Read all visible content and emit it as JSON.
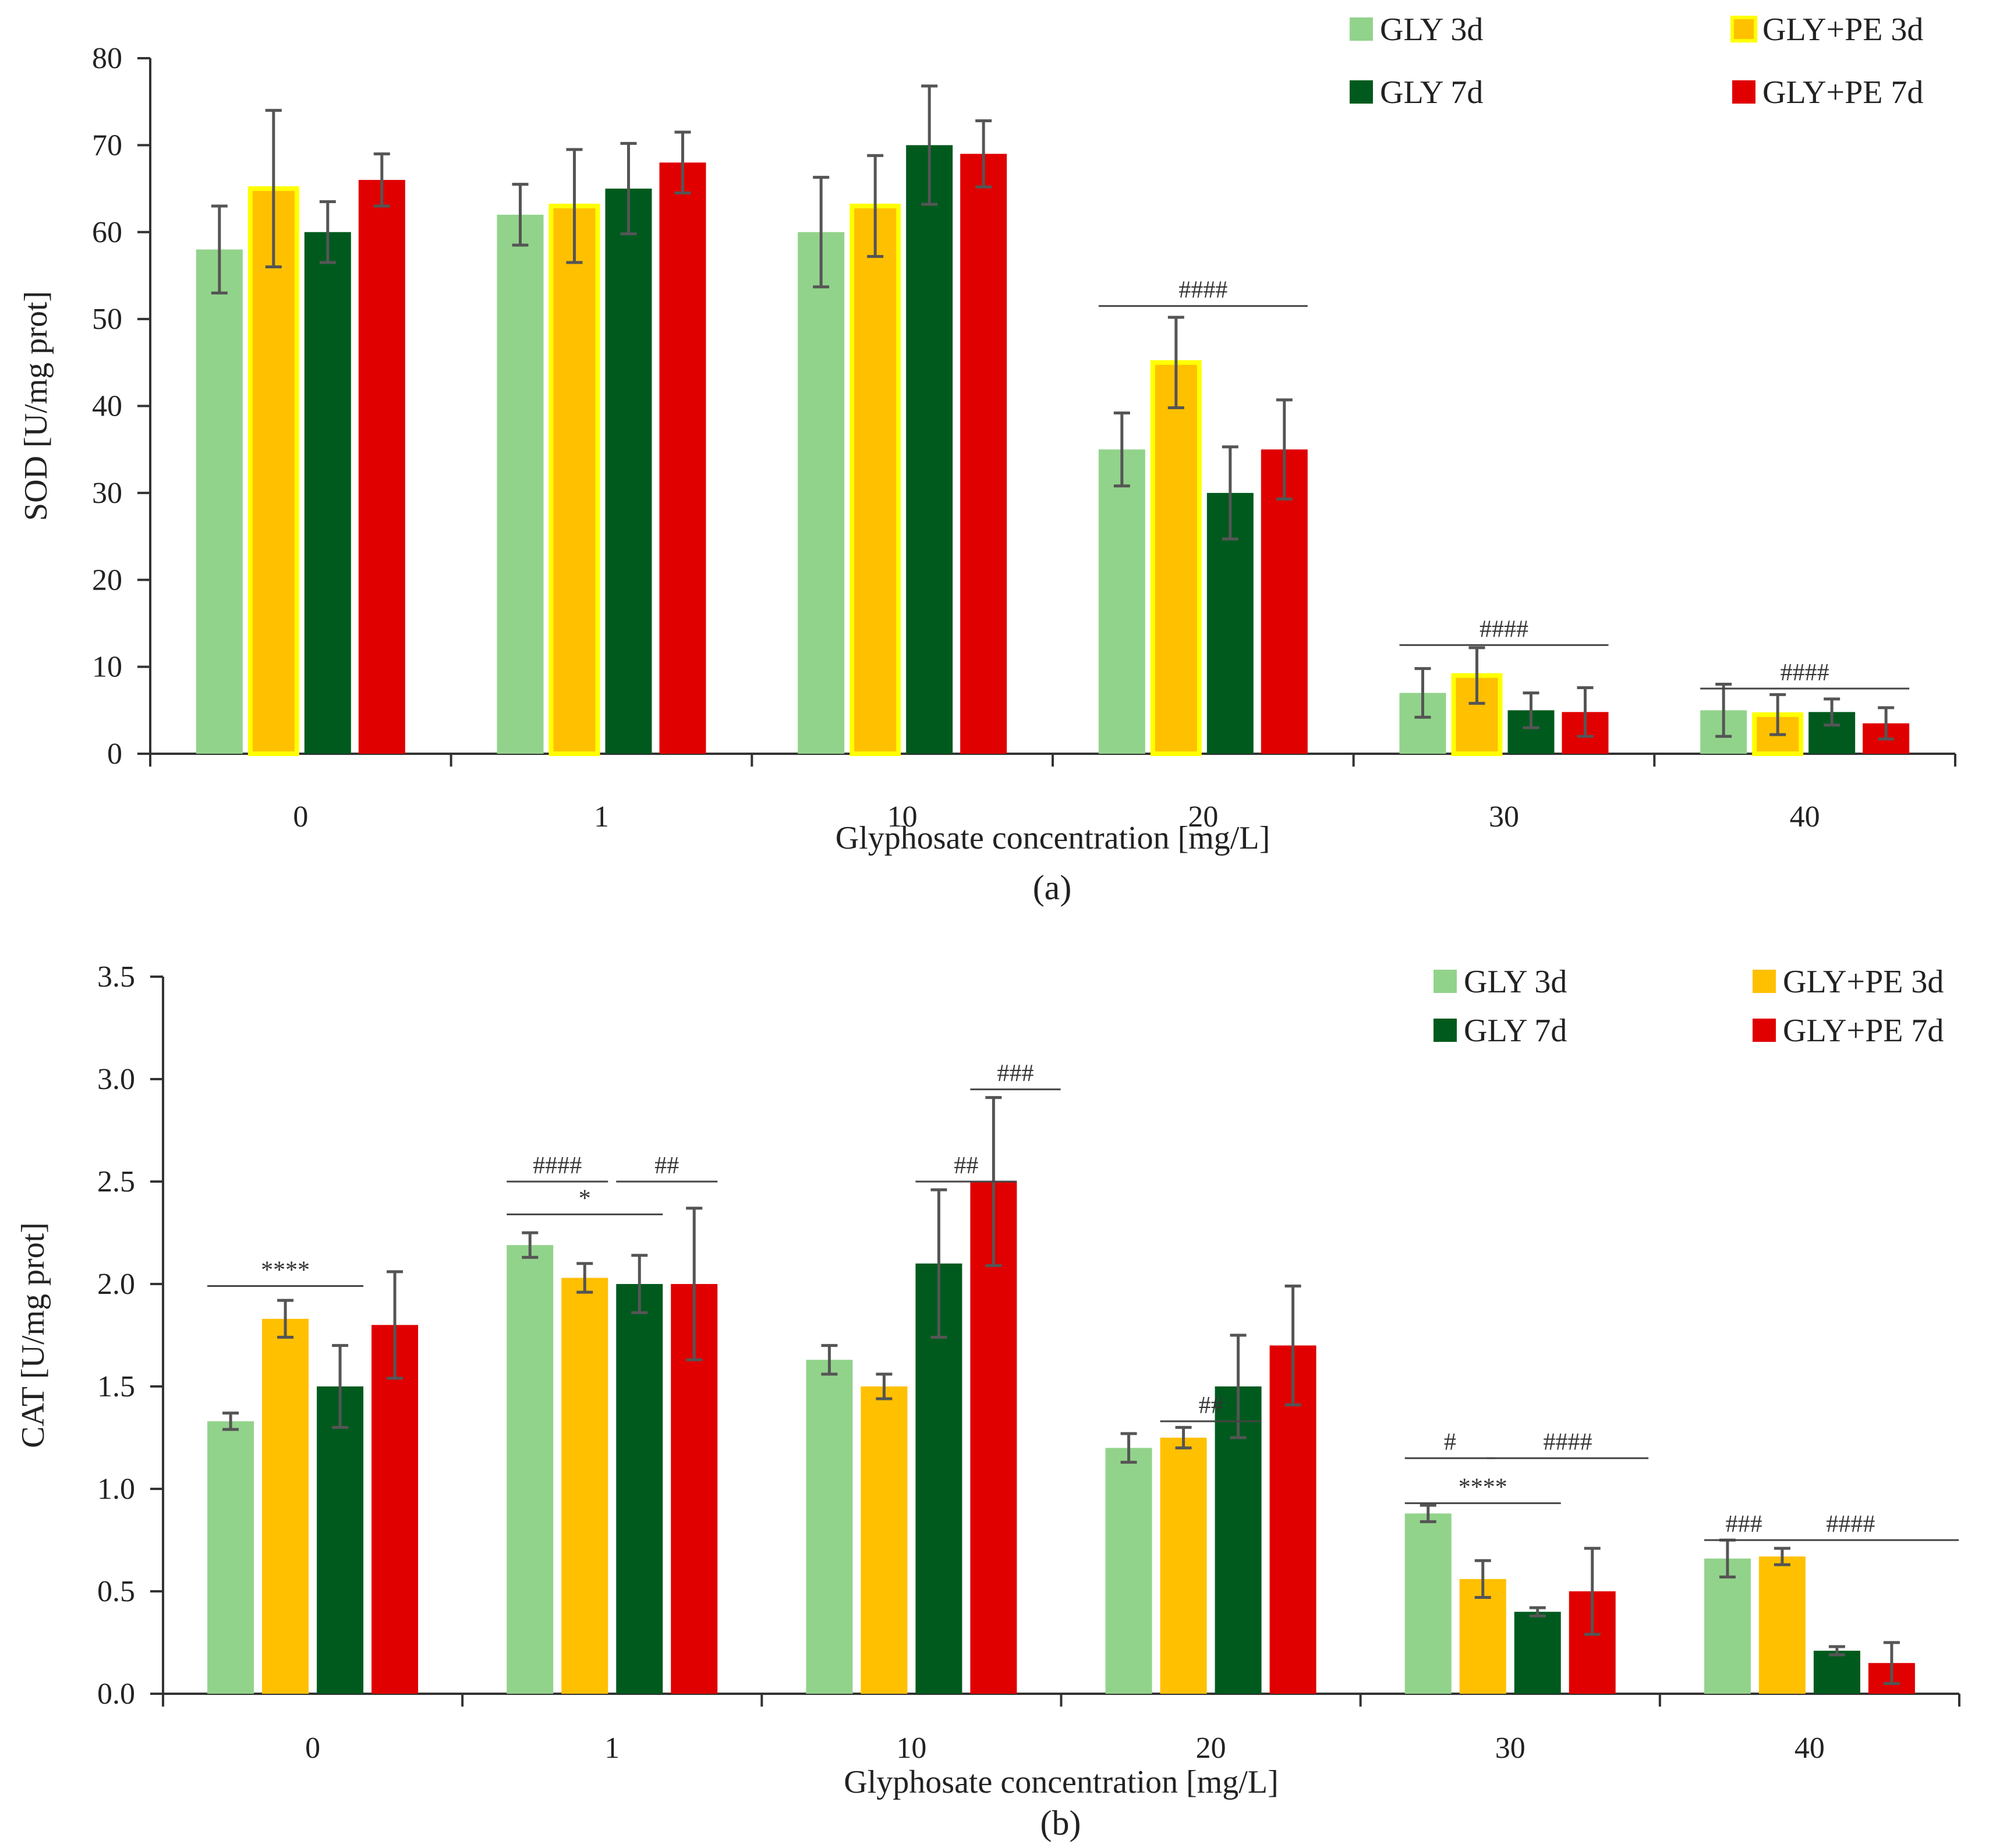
{
  "chart_data": [
    {
      "type": "bar",
      "panel_label": "(a)",
      "title": "",
      "xlabel": "Glyphosate concentration [mg/L]",
      "ylabel": "SOD [U/mg prot]",
      "ylim": [
        0,
        80
      ],
      "yticks": [
        0,
        10,
        20,
        30,
        40,
        50,
        60,
        70,
        80
      ],
      "ytick_labels": [
        "0",
        "10",
        "20",
        "30",
        "40",
        "50",
        "60",
        "70",
        "80"
      ],
      "categories": [
        "0",
        "1",
        "10",
        "20",
        "30",
        "40"
      ],
      "legend_position": "top-right",
      "series": [
        {
          "name": "GLY 3d",
          "color": "#92d38b",
          "border": "",
          "values": [
            58,
            62,
            60,
            35,
            7,
            5
          ],
          "errors": [
            5,
            3.5,
            6.3,
            4.2,
            2.8,
            3
          ]
        },
        {
          "name": "GLY+PE 3d",
          "color": "#ffc000",
          "border": "#ffff00",
          "values": [
            65,
            63,
            63,
            45,
            9,
            4.5
          ],
          "errors": [
            9,
            6.5,
            5.8,
            5.2,
            3.2,
            2.3
          ]
        },
        {
          "name": "GLY 7d",
          "color": "#005a1e",
          "border": "",
          "values": [
            60,
            65,
            70,
            30,
            5,
            4.8
          ],
          "errors": [
            3.5,
            5.2,
            6.8,
            5.3,
            2,
            1.5
          ]
        },
        {
          "name": "GLY+PE 7d",
          "color": "#e00000",
          "border": "",
          "values": [
            66,
            68,
            69,
            35,
            4.8,
            3.5
          ],
          "errors": [
            3,
            3.5,
            3.8,
            5.7,
            2.8,
            1.8
          ]
        }
      ],
      "annotations": [
        {
          "text": "####",
          "category": "20",
          "from_series": 0,
          "to_series": 3,
          "y": 51.5
        },
        {
          "text": "####",
          "category": "30",
          "from_series": 0,
          "to_series": 3,
          "y": 12.5
        },
        {
          "text": "####",
          "category": "40",
          "from_series": 0,
          "to_series": 3,
          "y": 7.5
        }
      ]
    },
    {
      "type": "bar",
      "panel_label": "(b)",
      "title": "",
      "xlabel": "Glyphosate concentration [mg/L]",
      "ylabel": "CAT [U/mg prot]",
      "ylim": [
        0,
        3.5
      ],
      "yticks": [
        0,
        0.5,
        1,
        1.5,
        2,
        2.5,
        3,
        3.5
      ],
      "ytick_labels": [
        "0.0",
        "0.5",
        "1.0",
        "1.5",
        "2.0",
        "2.5",
        "3.0",
        "3.5"
      ],
      "categories": [
        "0",
        "1",
        "10",
        "20",
        "30",
        "40"
      ],
      "legend_position": "top-right",
      "series": [
        {
          "name": "GLY 3d",
          "color": "#92d38b",
          "border": "",
          "values": [
            1.33,
            2.19,
            1.63,
            1.2,
            0.88,
            0.66
          ],
          "errors": [
            0.04,
            0.06,
            0.07,
            0.07,
            0.04,
            0.09
          ]
        },
        {
          "name": "GLY+PE 3d",
          "color": "#ffc000",
          "border": "",
          "values": [
            1.83,
            2.03,
            1.5,
            1.25,
            0.56,
            0.67
          ],
          "errors": [
            0.09,
            0.07,
            0.06,
            0.05,
            0.09,
            0.04
          ]
        },
        {
          "name": "GLY 7d",
          "color": "#005a1e",
          "border": "",
          "values": [
            1.5,
            2.0,
            2.1,
            1.5,
            0.4,
            0.21
          ],
          "errors": [
            0.2,
            0.14,
            0.36,
            0.25,
            0.02,
            0.02
          ]
        },
        {
          "name": "GLY+PE 7d",
          "color": "#e00000",
          "border": "",
          "values": [
            1.8,
            2.0,
            2.5,
            1.7,
            0.5,
            0.15
          ],
          "errors": [
            0.26,
            0.37,
            0.41,
            0.29,
            0.21,
            0.1
          ]
        }
      ],
      "annotations": [
        {
          "text": "****",
          "category": "0",
          "from_series": 0,
          "to_series": 2,
          "y": 1.99
        },
        {
          "text": "####",
          "category": "1",
          "from_series": 0,
          "to_series": 1,
          "y": 2.5
        },
        {
          "text": "*",
          "category": "1",
          "from_series": 0,
          "to_series": 2,
          "y": 2.34
        },
        {
          "text": "##",
          "category": "1",
          "from_series": 2,
          "to_series": 3,
          "y": 2.5
        },
        {
          "text": "##",
          "category": "10",
          "from_series": 2,
          "to_series": 3,
          "y": 2.5
        },
        {
          "text": "###",
          "category": "10",
          "from_series": 3,
          "to_series": 3.8,
          "y": 2.95
        },
        {
          "text": "##",
          "category": "20",
          "from_series": 1,
          "to_series": 2,
          "y": 1.33
        },
        {
          "text": "#",
          "category": "30",
          "from_series": 0,
          "to_series": 0.8,
          "y": 1.15
        },
        {
          "text": "****",
          "category": "30",
          "from_series": 0,
          "to_series": 2,
          "y": 0.93
        },
        {
          "text": "####",
          "category": "30",
          "from_series": 1.5,
          "to_series": 3.6,
          "y": 1.15
        },
        {
          "text": "###",
          "category": "40",
          "from_series": 0,
          "to_series": 0.6,
          "y": 0.75
        },
        {
          "text": "####",
          "category": "40",
          "from_series": 0.7,
          "to_series": 3.8,
          "y": 0.75
        }
      ]
    }
  ]
}
